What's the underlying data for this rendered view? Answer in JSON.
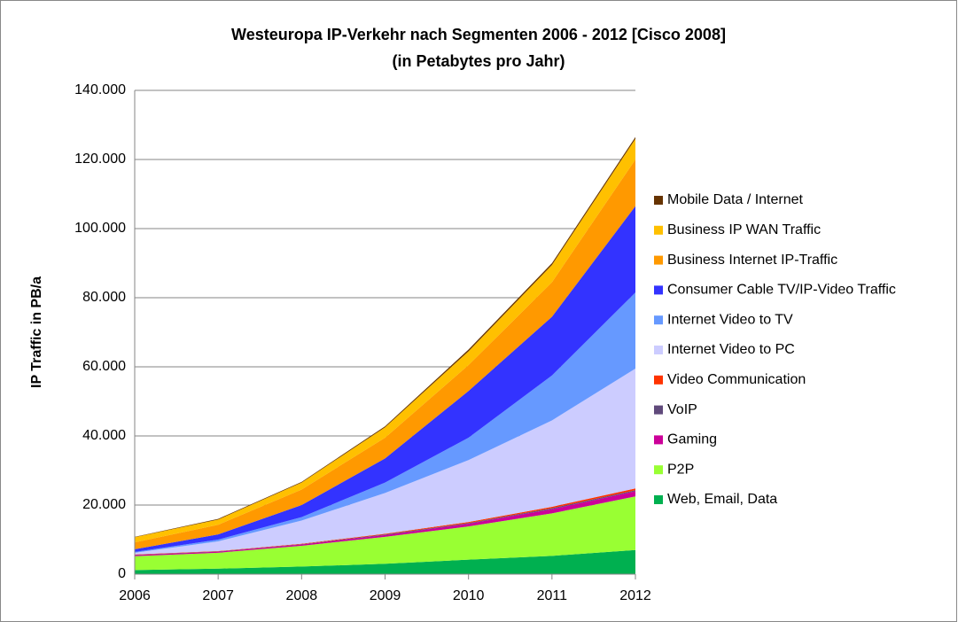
{
  "chart_data": {
    "type": "stacked_area",
    "title": "Westeuropa IP-Verkehr nach Segmenten 2006 - 2012 [Cisco 2008]",
    "subtitle": "(in Petabytes pro Jahr)",
    "y_label": "IP Traffic in PB/a",
    "categories": [
      "2006",
      "2007",
      "2008",
      "2009",
      "2010",
      "2011",
      "2012"
    ],
    "ylim": [
      0,
      140000
    ],
    "yticks": [
      0,
      {
        "value": 20000,
        "label": "20.000"
      },
      {
        "value": 40000,
        "label": "40.000"
      },
      {
        "value": 60000,
        "label": "60.000"
      },
      {
        "value": 80000,
        "label": "80.000"
      },
      {
        "value": 100000,
        "label": "100.000"
      },
      {
        "value": 120000,
        "label": "120.000"
      },
      {
        "value": 140000,
        "label": "140.000"
      }
    ],
    "grid": true,
    "legend": "right",
    "series": [
      {
        "name": "Web, Email, Data",
        "color": "#00b050",
        "values": [
          1200,
          1600,
          2200,
          3000,
          4200,
          5300,
          7000
        ]
      },
      {
        "name": "P2P",
        "color": "#99ff33",
        "values": [
          4000,
          4600,
          6000,
          7800,
          9600,
          12300,
          15500
        ]
      },
      {
        "name": "Gaming",
        "color": "#cc0099",
        "values": [
          300,
          300,
          400,
          500,
          800,
          1200,
          1500
        ]
      },
      {
        "name": "VoIP",
        "color": "#604a7b",
        "values": [
          100,
          100,
          100,
          200,
          200,
          300,
          300
        ]
      },
      {
        "name": "Video Communication",
        "color": "#ff3300",
        "values": [
          100,
          100,
          100,
          200,
          300,
          400,
          500
        ]
      },
      {
        "name": "Internet Video to PC",
        "color": "#ccccff",
        "values": [
          500,
          2800,
          6700,
          11800,
          17900,
          25000,
          34700
        ]
      },
      {
        "name": "Internet Video to TV",
        "color": "#6699ff",
        "values": [
          200,
          500,
          1000,
          3000,
          6500,
          13000,
          22000
        ]
      },
      {
        "name": "Consumer Cable TV/IP-Video Traffic",
        "color": "#3333ff",
        "values": [
          800,
          1500,
          3500,
          7000,
          13500,
          17000,
          25000
        ]
      },
      {
        "name": "Business Internet IP-Traffic",
        "color": "#ff9900",
        "values": [
          2000,
          2800,
          4500,
          6000,
          7500,
          10000,
          13500
        ]
      },
      {
        "name": "Business IP WAN Traffic",
        "color": "#ffc000",
        "values": [
          1500,
          1500,
          2000,
          3000,
          4000,
          5000,
          6000
        ]
      },
      {
        "name": "Mobile Data / Internet",
        "color": "#663300",
        "values": [
          100,
          200,
          200,
          300,
          500,
          500,
          500
        ]
      }
    ]
  }
}
